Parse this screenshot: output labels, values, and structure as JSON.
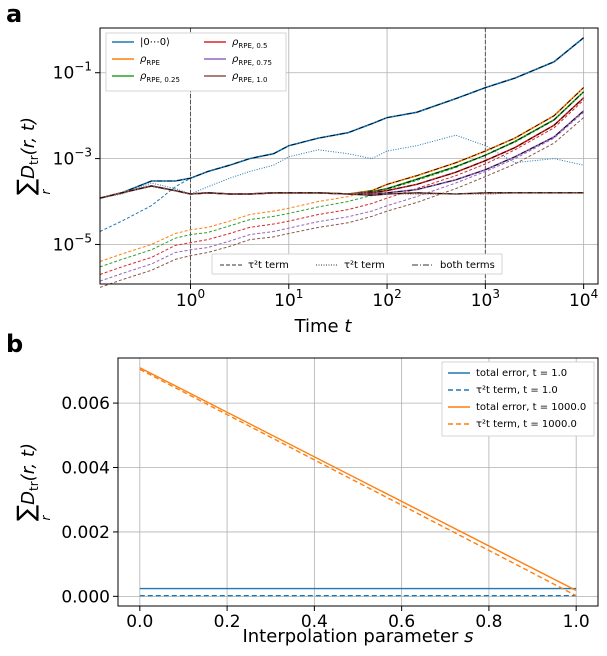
{
  "chart_data": [
    {
      "panel": "a",
      "type": "line",
      "x_scale": "log",
      "y_scale": "log",
      "xlim": [
        0.12,
        14000
      ],
      "ylim": [
        1.2e-06,
        1.1
      ],
      "xticks": [
        1,
        10,
        100,
        1000,
        10000
      ],
      "xtick_labels": [
        "10^0",
        "10^1",
        "10^2",
        "10^3",
        "10^4"
      ],
      "yticks": [
        1e-05,
        0.001,
        0.1
      ],
      "ytick_labels": [
        "10^-5",
        "10^-3",
        "10^-1"
      ],
      "xlabel": "Time t",
      "ylabel": "Σ_r D_tr(r, t)",
      "grid": true,
      "vlines": [
        1,
        1000
      ],
      "legend_placement": "top-left",
      "legend2_placement": "lower-right",
      "colors": {
        "zero": "#1f77b4",
        "rpe": "#ff7f0e",
        "rpe025": "#2ca02c",
        "rpe05": "#d62728",
        "rpe075": "#9467bd",
        "rpe10": "#8c564b"
      },
      "legend": [
        {
          "key": "zero",
          "label": "|0⋯0⟩",
          "sub": ""
        },
        {
          "key": "rpe",
          "label": "ρ",
          "sub": "RPE"
        },
        {
          "key": "rpe025",
          "label": "ρ",
          "sub": "RPE, 0.25"
        },
        {
          "key": "rpe05",
          "label": "ρ",
          "sub": "RPE, 0.5"
        },
        {
          "key": "rpe075",
          "label": "ρ",
          "sub": "RPE, 0.75"
        },
        {
          "key": "rpe10",
          "label": "ρ",
          "sub": "RPE, 1.0"
        }
      ],
      "style_legend": [
        {
          "dash": "4,2",
          "label": "τ²t term"
        },
        {
          "dash": "1,1.5",
          "label": "τ²t term"
        },
        {
          "dash": "6,2,1,2",
          "label": "both terms"
        }
      ],
      "x": [
        0.12,
        0.2,
        0.4,
        0.7,
        1,
        1.5,
        2.5,
        4,
        7,
        10,
        20,
        40,
        70,
        100,
        200,
        500,
        1000,
        2000,
        5000,
        10000
      ],
      "series": [
        {
          "key": "zero",
          "total": [
            0.00012,
            0.00016,
            0.0003,
            0.0003,
            0.00035,
            0.0005,
            0.0007,
            0.001,
            0.0013,
            0.002,
            0.003,
            0.004,
            0.0065,
            0.009,
            0.012,
            0.025,
            0.045,
            0.075,
            0.18,
            0.65
          ],
          "tau2t": [
            2e-05,
            3.5e-05,
            8e-05,
            0.00022,
            0.00035,
            0.0005,
            0.0007,
            0.001,
            0.0013,
            0.002,
            0.003,
            0.004,
            0.0065,
            0.009,
            0.012,
            0.025,
            0.045,
            0.075,
            0.18,
            0.65
          ],
          "tau2": [
            0.00012,
            0.00015,
            0.00027,
            0.0002,
            0.00015,
            0.00022,
            0.00035,
            0.0005,
            0.0007,
            0.0011,
            0.0016,
            0.0013,
            0.001,
            0.0015,
            0.002,
            0.0035,
            0.002,
            0.0008,
            0.001,
            0.0007
          ]
        },
        {
          "key": "rpe",
          "total": [
            0.00012,
            0.00016,
            0.00023,
            0.00018,
            0.00015,
            0.00016,
            0.00015,
            0.00015,
            0.00016,
            0.00016,
            0.00016,
            0.00015,
            0.00018,
            0.00025,
            0.0004,
            0.0008,
            0.0015,
            0.003,
            0.01,
            0.045
          ],
          "tau2t": [
            4e-06,
            6e-06,
            1e-05,
            1.8e-05,
            2.2e-05,
            2.5e-05,
            3.5e-05,
            5e-05,
            6e-05,
            7e-05,
            0.0001,
            0.00013,
            0.00018,
            0.00025,
            0.0004,
            0.0008,
            0.0015,
            0.003,
            0.01,
            0.045
          ],
          "tau2": [
            0.00012,
            0.00016,
            0.00023,
            0.00018,
            0.00015,
            0.00016,
            0.00015,
            0.00015,
            0.00016,
            0.00016,
            0.00016,
            0.00015,
            0.00015,
            0.00015,
            0.00015,
            0.00015,
            0.00015,
            0.00016,
            0.00016,
            0.00016
          ]
        },
        {
          "key": "rpe025",
          "total": [
            0.00012,
            0.00016,
            0.00023,
            0.00018,
            0.00015,
            0.00016,
            0.00015,
            0.00015,
            0.00016,
            0.00016,
            0.00016,
            0.00015,
            0.00017,
            0.0002,
            0.00033,
            0.00065,
            0.0012,
            0.0025,
            0.008,
            0.036
          ],
          "tau2t": [
            3e-06,
            4.5e-06,
            7.5e-06,
            1.4e-05,
            1.7e-05,
            1.9e-05,
            2.7e-05,
            3.8e-05,
            4.5e-05,
            5.3e-05,
            7.5e-05,
            0.0001,
            0.00014,
            0.00019,
            0.00031,
            0.00062,
            0.0012,
            0.0024,
            0.0078,
            0.035
          ],
          "tau2": [
            0.00012,
            0.00016,
            0.00023,
            0.00018,
            0.00015,
            0.00016,
            0.00015,
            0.00015,
            0.00016,
            0.00016,
            0.00016,
            0.00015,
            0.00015,
            0.00015,
            0.00015,
            0.00015,
            0.00015,
            0.00016,
            0.00016,
            0.00016
          ]
        },
        {
          "key": "rpe05",
          "total": [
            0.00012,
            0.00016,
            0.00023,
            0.00018,
            0.00015,
            0.00016,
            0.00015,
            0.00015,
            0.00016,
            0.00016,
            0.00016,
            0.00015,
            0.00016,
            0.00018,
            0.00025,
            0.00048,
            0.0009,
            0.0018,
            0.006,
            0.026
          ],
          "tau2t": [
            2e-06,
            3e-06,
            5e-06,
            9.5e-06,
            1.1e-05,
            1.3e-05,
            1.8e-05,
            2.5e-05,
            3e-05,
            3.5e-05,
            5e-05,
            6.5e-05,
            9e-05,
            0.00012,
            0.0002,
            0.0004,
            0.00075,
            0.0016,
            0.0052,
            0.023
          ],
          "tau2": [
            0.00012,
            0.00016,
            0.00023,
            0.00018,
            0.00015,
            0.00016,
            0.00015,
            0.00015,
            0.00016,
            0.00016,
            0.00016,
            0.00015,
            0.00015,
            0.00015,
            0.00015,
            0.00015,
            0.00015,
            0.00016,
            0.00016,
            0.00016
          ]
        },
        {
          "key": "rpe075",
          "total": [
            0.00012,
            0.00016,
            0.00023,
            0.00018,
            0.00015,
            0.00016,
            0.00015,
            0.00015,
            0.00016,
            0.00016,
            0.00016,
            0.00015,
            0.00015,
            0.00016,
            0.00019,
            0.00032,
            0.00055,
            0.0011,
            0.0032,
            0.013
          ],
          "tau2t": [
            1.4e-06,
            2.1e-06,
            3.5e-06,
            6.5e-06,
            7.5e-06,
            8.5e-06,
            1.2e-05,
            1.7e-05,
            2e-05,
            2.4e-05,
            3.4e-05,
            4.4e-05,
            6e-05,
            8e-05,
            0.00013,
            0.00027,
            0.0005,
            0.001,
            0.003,
            0.012
          ],
          "tau2": [
            0.00012,
            0.00016,
            0.00023,
            0.00018,
            0.00015,
            0.00016,
            0.00015,
            0.00015,
            0.00016,
            0.00016,
            0.00016,
            0.00015,
            0.00015,
            0.00015,
            0.00015,
            0.00015,
            0.00015,
            0.00016,
            0.00016,
            0.00016
          ]
        },
        {
          "key": "rpe10",
          "total": [
            0.00012,
            0.00016,
            0.00023,
            0.00018,
            0.00015,
            0.00016,
            0.00015,
            0.00015,
            0.00016,
            0.00016,
            0.00016,
            0.00015,
            0.00014,
            0.00015,
            0.00016,
            0.00015,
            0.00016,
            0.00016,
            0.00016,
            0.00016
          ],
          "tau2t": [
            1e-06,
            1.5e-06,
            2.5e-06,
            4.5e-06,
            5.5e-06,
            6.5e-06,
            9e-06,
            1.3e-05,
            1.5e-05,
            1.8e-05,
            2.5e-05,
            3.2e-05,
            4.5e-05,
            6e-05,
            9.5e-05,
            0.0002,
            0.00038,
            0.00075,
            0.0023,
            0.009
          ],
          "tau2": [
            0.00012,
            0.00016,
            0.00023,
            0.00018,
            0.00015,
            0.00016,
            0.00015,
            0.00015,
            0.00016,
            0.00016,
            0.00016,
            0.00015,
            0.00015,
            0.00015,
            0.00015,
            0.00015,
            0.00015,
            0.00016,
            0.00016,
            0.00016
          ]
        }
      ]
    },
    {
      "panel": "b",
      "type": "line",
      "xlim": [
        -0.05,
        1.05
      ],
      "ylim": [
        -0.0003,
        0.0074
      ],
      "xticks": [
        0.0,
        0.2,
        0.4,
        0.6,
        0.8,
        1.0
      ],
      "xtick_labels": [
        "0.0",
        "0.2",
        "0.4",
        "0.6",
        "0.8",
        "1.0"
      ],
      "yticks": [
        0.0,
        0.002,
        0.004,
        0.006
      ],
      "ytick_labels": [
        "0.000",
        "0.002",
        "0.004",
        "0.006"
      ],
      "xlabel": "Interpolation parameter s",
      "ylabel": "Σ_r D_tr(r, t)",
      "grid": true,
      "legend_placement": "top-right",
      "series": [
        {
          "label": "total error, t = 1.0",
          "color": "#1f77b4",
          "dash": "",
          "x": [
            0.0,
            1.0
          ],
          "y": [
            0.00024,
            0.00024
          ]
        },
        {
          "label": "τ²t term, t = 1.0",
          "color": "#1f77b4",
          "dash": "5,3",
          "x": [
            0.0,
            1.0
          ],
          "y": [
            2e-05,
            2e-05
          ]
        },
        {
          "label": "total error, t = 1000.0",
          "color": "#ff7f0e",
          "dash": "",
          "x": [
            0.0,
            1.0
          ],
          "y": [
            0.0071,
            0.00018
          ]
        },
        {
          "label": "τ²t term, t = 1000.0",
          "color": "#ff7f0e",
          "dash": "5,3",
          "x": [
            0.0,
            1.0
          ],
          "y": [
            0.00705,
            2e-05
          ]
        }
      ]
    }
  ],
  "labels": {
    "panel_a": "a",
    "panel_b": "b",
    "xlabel_a_text": "Time ",
    "xlabel_a_var": "t",
    "xlabel_b_text": "Interpolation parameter ",
    "xlabel_b_var": "s",
    "ylabel_sum": "∑",
    "ylabel_sub": "r",
    "ylabel_D": "D",
    "ylabel_D_sub": "tr",
    "ylabel_args": "(r, t)",
    "legend_b": [
      "total error, t = 1.0",
      "τ²t term, t = 1.0",
      "total error, t = 1000.0",
      "τ²t term, t = 1000.0"
    ]
  }
}
